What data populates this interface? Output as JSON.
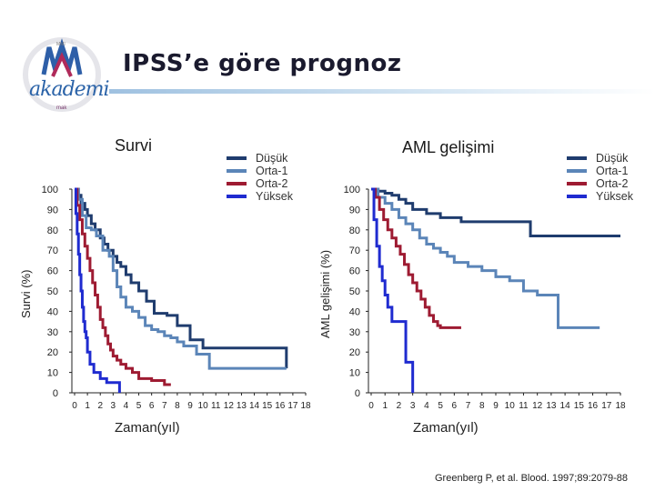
{
  "header": {
    "title": "IPSS’e göre prognoz",
    "logo_text": "akademi",
    "logo_top": "MMI",
    "logo_sub": "mak"
  },
  "citation": "Greenberg P, et al. Blood. 1997;89:2079-88",
  "colors": {
    "dusuk": "#1f3c6e",
    "orta1": "#5b85b8",
    "orta2": "#9e1b32",
    "yuksek": "#1f2bd0"
  },
  "chart_data": [
    {
      "type": "line",
      "title": "Survi",
      "xlabel": "Zaman(yıl)",
      "ylabel": "Survi (%)",
      "xlim": [
        0,
        18
      ],
      "ylim": [
        0,
        100
      ],
      "xticks": [
        "0",
        "1",
        "2",
        "3",
        "4",
        "5",
        "6",
        "7",
        "8",
        "9",
        "10",
        "11",
        "12",
        "13",
        "14",
        "15",
        "16",
        "17",
        "18"
      ],
      "yticks": [
        "0",
        "10",
        "20",
        "30",
        "40",
        "50",
        "60",
        "70",
        "80",
        "90",
        "100"
      ],
      "series": [
        {
          "name": "Düşük",
          "color_key": "dusuk",
          "x": [
            0,
            0.3,
            0.5,
            0.8,
            1.0,
            1.3,
            1.6,
            2.0,
            2.3,
            2.6,
            3.0,
            3.3,
            3.6,
            4.0,
            4.4,
            5.0,
            5.6,
            6.2,
            7.2,
            8.0,
            9.0,
            10.0,
            15.5,
            16.5
          ],
          "y": [
            100,
            97,
            93,
            90,
            87,
            83,
            80,
            76,
            73,
            70,
            67,
            64,
            62,
            58,
            54,
            50,
            45,
            39,
            38,
            33,
            26,
            22,
            22,
            12
          ]
        },
        {
          "name": "Orta-1",
          "color_key": "orta1",
          "x": [
            0,
            0.3,
            0.6,
            0.9,
            1.3,
            1.7,
            2.2,
            2.7,
            3.0,
            3.3,
            3.6,
            4.0,
            4.5,
            5.0,
            5.5,
            6.0,
            6.5,
            7.0,
            7.5,
            8.0,
            8.5,
            9.5,
            10.5,
            16.5
          ],
          "y": [
            100,
            95,
            87,
            81,
            80,
            77,
            70,
            67,
            60,
            52,
            47,
            42,
            40,
            37,
            33,
            31,
            30,
            28,
            27,
            25,
            23,
            19,
            12,
            12
          ]
        },
        {
          "name": "Orta-2",
          "color_key": "orta2",
          "x": [
            0,
            0.2,
            0.4,
            0.6,
            0.8,
            1.0,
            1.2,
            1.4,
            1.6,
            1.8,
            2.0,
            2.2,
            2.4,
            2.6,
            2.8,
            3.0,
            3.3,
            3.6,
            4.0,
            4.5,
            5.0,
            6.0,
            7.0,
            7.5
          ],
          "y": [
            100,
            92,
            85,
            78,
            72,
            66,
            60,
            54,
            48,
            42,
            36,
            32,
            28,
            24,
            21,
            18,
            16,
            14,
            12,
            10,
            7,
            6,
            4,
            4
          ]
        },
        {
          "name": "Yüksek",
          "color_key": "yuksek",
          "x": [
            0,
            0.1,
            0.2,
            0.3,
            0.4,
            0.5,
            0.6,
            0.7,
            0.8,
            0.9,
            1.0,
            1.2,
            1.5,
            2.0,
            2.5,
            3.0,
            3.5
          ],
          "y": [
            100,
            88,
            78,
            68,
            58,
            50,
            42,
            35,
            30,
            27,
            20,
            14,
            10,
            7,
            5,
            5,
            0
          ]
        }
      ]
    },
    {
      "type": "line",
      "title": "AML gelişimi",
      "xlabel": "Zaman(yıl)",
      "ylabel": "AML gelişimi (%)",
      "xlim": [
        0,
        18
      ],
      "ylim": [
        0,
        100
      ],
      "xticks": [
        "0",
        "1",
        "2",
        "3",
        "4",
        "5",
        "6",
        "7",
        "8",
        "9",
        "10",
        "11",
        "12",
        "13",
        "14",
        "15",
        "16",
        "17",
        "18"
      ],
      "yticks": [
        "0",
        "10",
        "20",
        "30",
        "40",
        "50",
        "60",
        "70",
        "80",
        "90",
        "100"
      ],
      "series": [
        {
          "name": "Düşük",
          "color_key": "dusuk",
          "x": [
            0,
            0.5,
            1.0,
            1.5,
            2.0,
            2.5,
            3.0,
            4.0,
            5.0,
            6.5,
            11.0,
            11.5,
            18.0
          ],
          "y": [
            100,
            99,
            98,
            97,
            95,
            93,
            90,
            88,
            86,
            84,
            84,
            77,
            77
          ]
        },
        {
          "name": "Orta-1",
          "color_key": "orta1",
          "x": [
            0,
            0.5,
            1.0,
            1.5,
            2.0,
            2.5,
            3.0,
            3.5,
            4.0,
            4.5,
            5.0,
            5.5,
            6.0,
            7.0,
            8.0,
            9.0,
            10.0,
            11.0,
            11.5,
            12.0,
            13.5,
            16.5
          ],
          "y": [
            100,
            96,
            93,
            90,
            86,
            83,
            80,
            76,
            73,
            71,
            69,
            67,
            64,
            62,
            60,
            57,
            55,
            50,
            50,
            48,
            32,
            32
          ]
        },
        {
          "name": "Orta-2",
          "color_key": "orta2",
          "x": [
            0,
            0.3,
            0.6,
            0.9,
            1.2,
            1.5,
            1.8,
            2.1,
            2.4,
            2.7,
            3.0,
            3.3,
            3.6,
            3.9,
            4.2,
            4.5,
            4.8,
            5.0,
            6.0,
            6.5
          ],
          "y": [
            100,
            96,
            90,
            85,
            80,
            76,
            72,
            68,
            63,
            58,
            54,
            50,
            46,
            42,
            38,
            35,
            33,
            32,
            32,
            32
          ]
        },
        {
          "name": "Yüksek",
          "color_key": "yuksek",
          "x": [
            0,
            0.2,
            0.4,
            0.6,
            0.8,
            1.0,
            1.2,
            1.5,
            2.0,
            2.5,
            2.8,
            3.0
          ],
          "y": [
            100,
            85,
            72,
            62,
            55,
            48,
            42,
            35,
            35,
            15,
            15,
            0
          ]
        }
      ]
    }
  ]
}
